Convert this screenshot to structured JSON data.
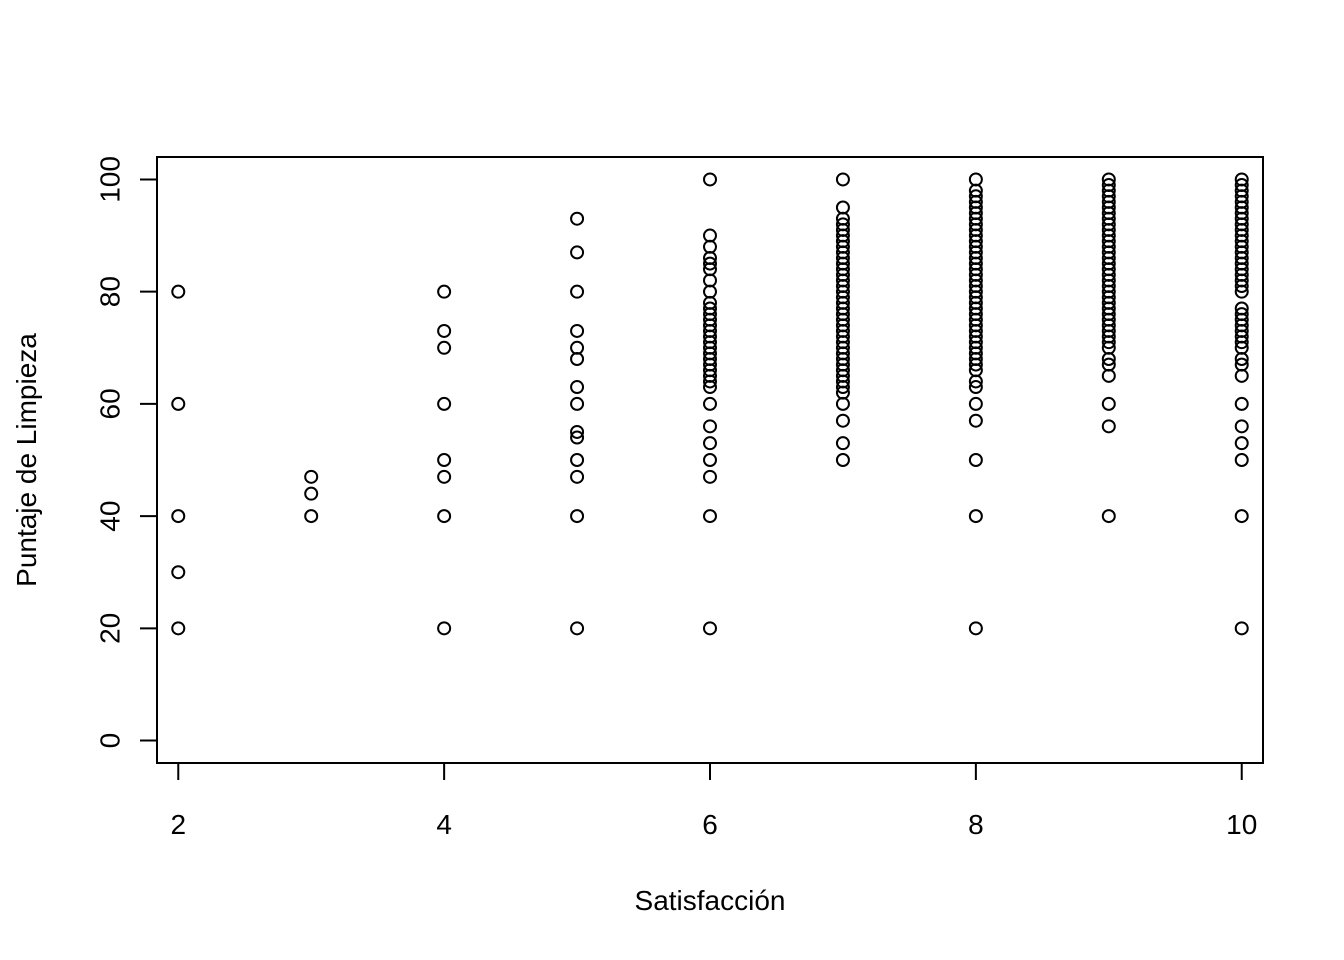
{
  "chart_data": {
    "type": "scatter",
    "xlabel": "Satisfacción",
    "ylabel": "Puntaje de Limpieza",
    "xlim": [
      1.84,
      10.16
    ],
    "ylim": [
      -4,
      104
    ],
    "x_ticks": [
      2,
      4,
      6,
      8,
      10
    ],
    "x_tick_labels": [
      "2",
      "4",
      "6",
      "8",
      "10"
    ],
    "y_ticks": [
      0,
      20,
      40,
      60,
      80,
      100
    ],
    "y_tick_labels": [
      "0",
      "20",
      "40",
      "60",
      "80",
      "100"
    ],
    "grid": false,
    "marker": "open-circle",
    "colors": {
      "points": "#000000",
      "axes": "#000000",
      "background": "#ffffff"
    },
    "points": [
      {
        "x": 2,
        "y": [
          80,
          60,
          40,
          30,
          20
        ]
      },
      {
        "x": 3,
        "y": [
          47,
          44,
          40
        ]
      },
      {
        "x": 4,
        "y": [
          80,
          73,
          70,
          60,
          50,
          47,
          40,
          20
        ]
      },
      {
        "x": 5,
        "y": [
          93,
          87,
          80,
          73,
          70,
          68,
          63,
          60,
          55,
          54,
          50,
          47,
          40,
          20
        ]
      },
      {
        "x": 6,
        "y": [
          100,
          90,
          88,
          86,
          85,
          84,
          82,
          80,
          78,
          77,
          76,
          75,
          74,
          73,
          72,
          71,
          70,
          69,
          68,
          67,
          66,
          65,
          64,
          63,
          60,
          56,
          53,
          50,
          47,
          40,
          20
        ]
      },
      {
        "x": 7,
        "y": [
          100,
          95,
          93,
          92,
          91,
          90,
          89,
          88,
          87,
          86,
          85,
          84,
          83,
          82,
          81,
          80,
          79,
          78,
          77,
          76,
          75,
          74,
          73,
          72,
          71,
          70,
          69,
          68,
          67,
          66,
          65,
          64,
          63,
          62,
          60,
          57,
          53,
          50
        ]
      },
      {
        "x": 8,
        "y": [
          100,
          98,
          97,
          96,
          95,
          94,
          93,
          92,
          91,
          90,
          89,
          88,
          87,
          86,
          85,
          84,
          83,
          82,
          81,
          80,
          79,
          78,
          77,
          76,
          75,
          74,
          73,
          72,
          71,
          70,
          69,
          68,
          67,
          66,
          64,
          63,
          60,
          57,
          50,
          40,
          20
        ]
      },
      {
        "x": 9,
        "y": [
          100,
          99,
          98,
          97,
          96,
          95,
          94,
          93,
          92,
          91,
          90,
          89,
          88,
          87,
          86,
          85,
          84,
          83,
          82,
          81,
          80,
          79,
          78,
          77,
          76,
          75,
          74,
          73,
          72,
          71,
          70,
          68,
          67,
          65,
          60,
          56,
          40
        ]
      },
      {
        "x": 10,
        "y": [
          100,
          99,
          98,
          97,
          96,
          95,
          94,
          93,
          92,
          91,
          90,
          89,
          88,
          87,
          86,
          85,
          84,
          83,
          82,
          81,
          80,
          77,
          76,
          75,
          74,
          73,
          72,
          71,
          70,
          68,
          67,
          65,
          60,
          56,
          53,
          50,
          40,
          20
        ]
      }
    ]
  }
}
